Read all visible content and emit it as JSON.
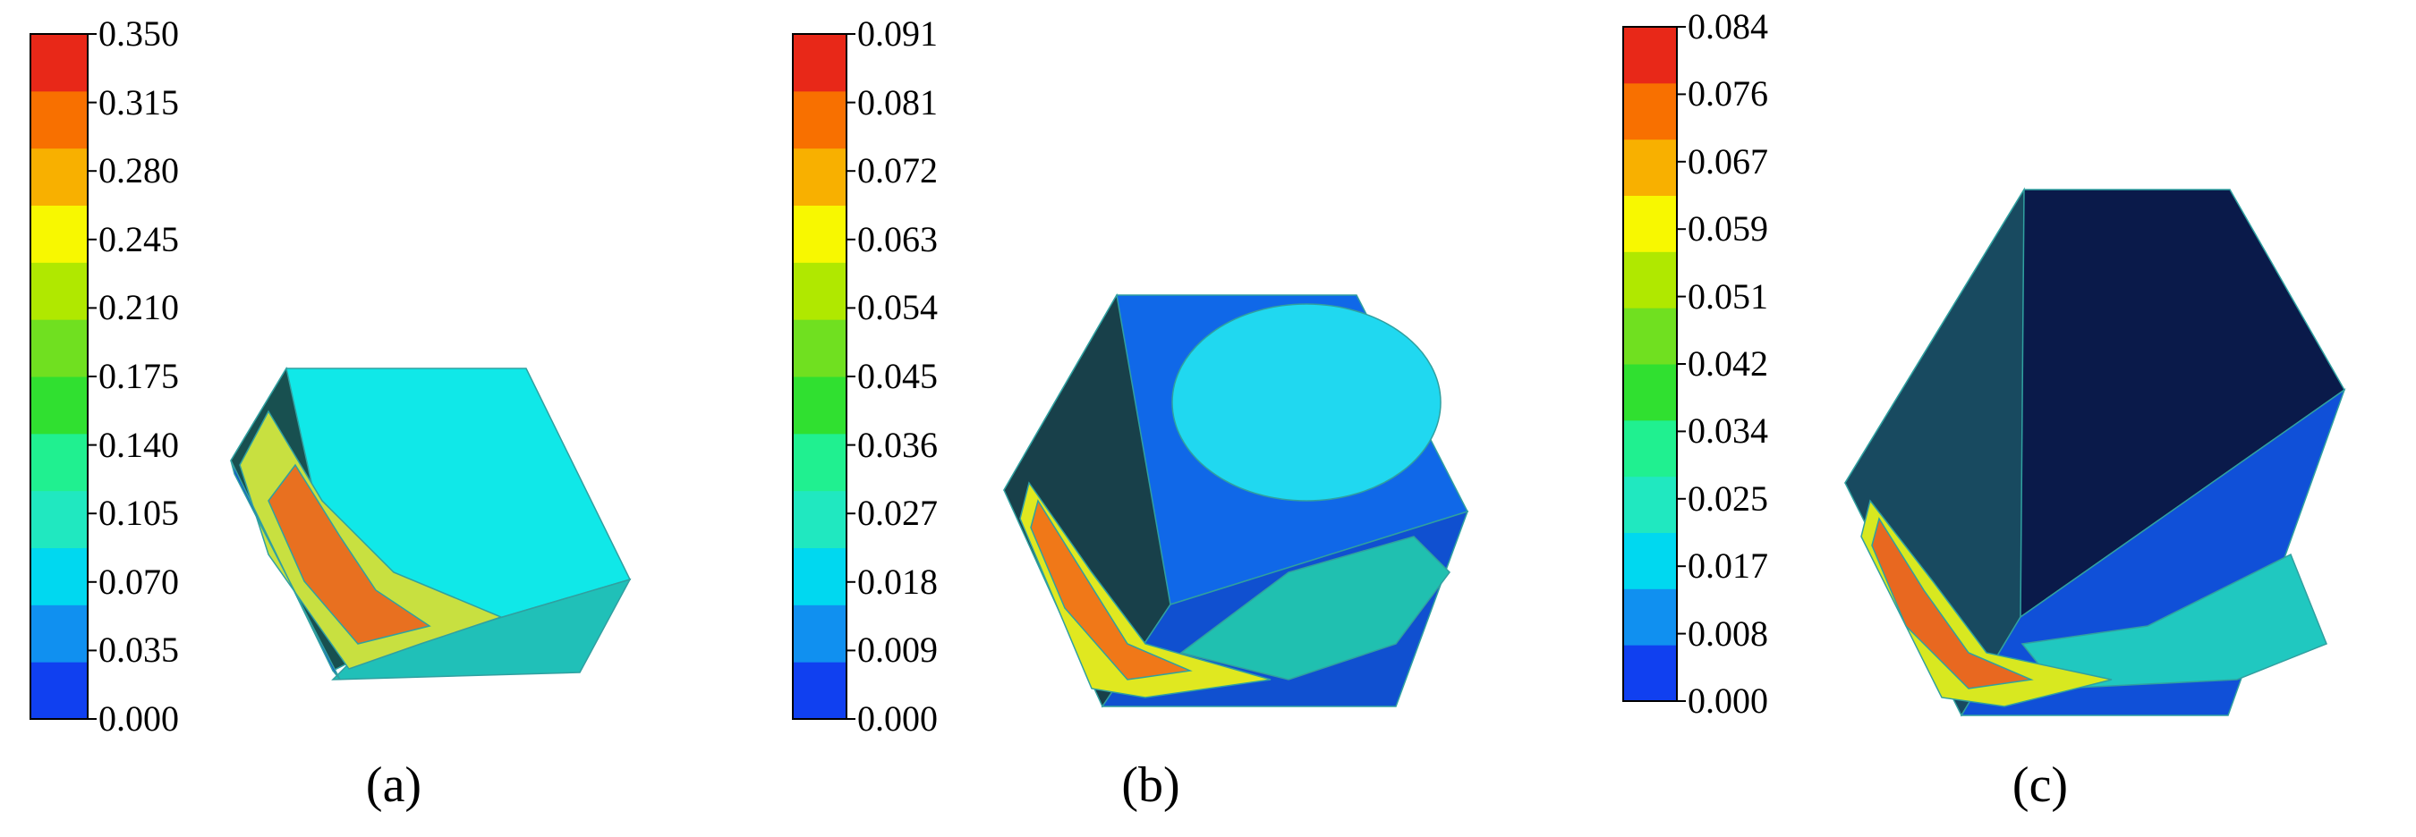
{
  "colormap": [
    "#1040f0",
    "#1090f0",
    "#00d8f0",
    "#20e8c0",
    "#20f090",
    "#30e030",
    "#70e020",
    "#b0e800",
    "#f8f800",
    "#f8b000",
    "#f87000",
    "#e82818"
  ],
  "panels": [
    {
      "caption": "(a)",
      "ticks": [
        "0.000",
        "0.035",
        "0.070",
        "0.105",
        "0.140",
        "0.175",
        "0.210",
        "0.245",
        "0.280",
        "0.315",
        "0.350"
      ],
      "cube": {
        "top_color": "#10e8e8",
        "left_color": "#185050",
        "right_color": "#20c0b8",
        "hot_color": "#e87020",
        "warm_color": "#c8e040"
      }
    },
    {
      "caption": "(b)",
      "ticks": [
        "0.000",
        "0.009",
        "0.018",
        "0.027",
        "0.036",
        "0.045",
        "0.054",
        "0.063",
        "0.072",
        "0.081",
        "0.091"
      ],
      "cube": {
        "top_color": "#1068e8",
        "left_color": "#18404a",
        "right_color": "#1050d0",
        "hot_color": "#f07818",
        "warm_color": "#e0e820",
        "spot_color": "#20d8f0"
      }
    },
    {
      "caption": "(c)",
      "ticks": [
        "0.000",
        "0.008",
        "0.017",
        "0.025",
        "0.034",
        "0.042",
        "0.051",
        "0.059",
        "0.067",
        "0.076",
        "0.084"
      ],
      "cube": {
        "top_color": "#0a1a4a",
        "left_color": "#184a60",
        "right_color": "#1050d8",
        "hot_color": "#e86820",
        "warm_color": "#d8e820",
        "spot_color": "#20c8c0"
      }
    }
  ]
}
